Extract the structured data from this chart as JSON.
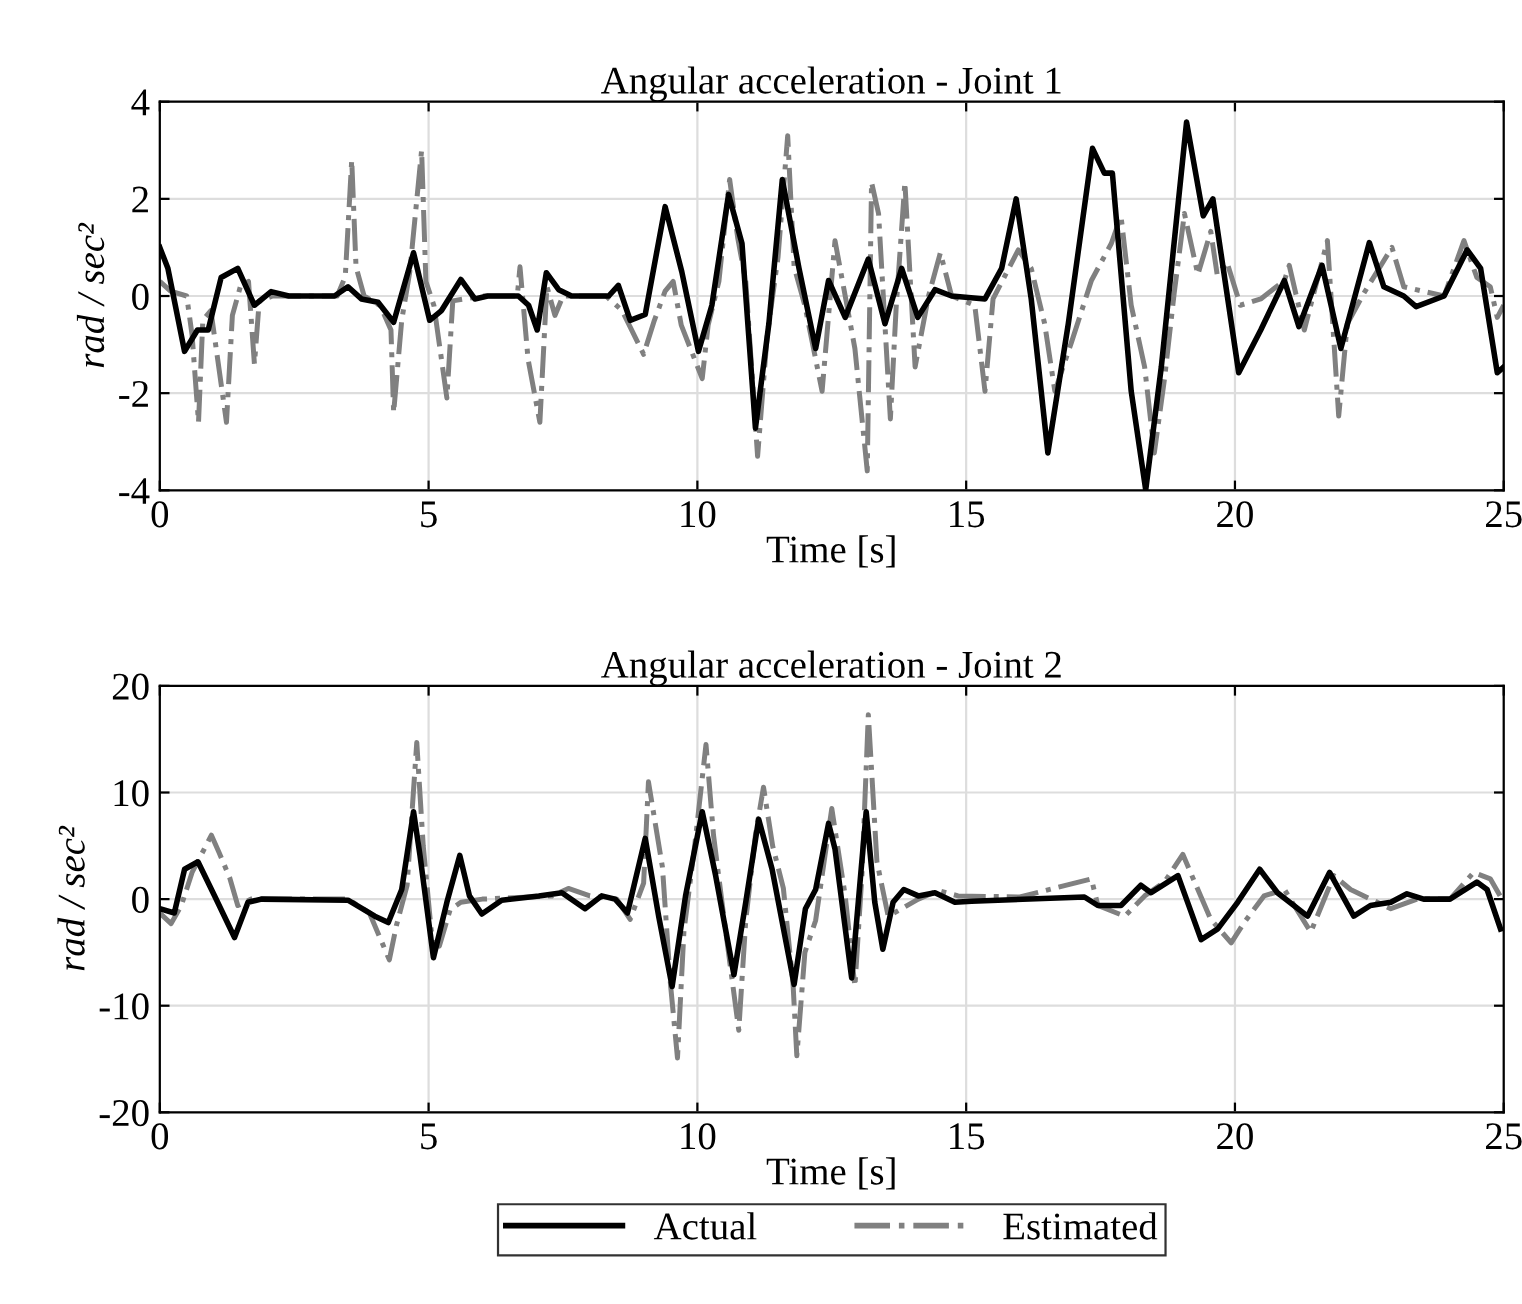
{
  "chart_data": [
    {
      "type": "line",
      "title": "Angular acceleration - Joint 1",
      "xlabel": "Time [s]",
      "ylabel": "rad / sec²",
      "xlim": [
        0,
        25
      ],
      "ylim": [
        -4,
        4
      ],
      "xticks": [
        0,
        5,
        10,
        15,
        20,
        25
      ],
      "yticks": [
        -4,
        -2,
        0,
        2,
        4
      ],
      "grid": true,
      "legend": false,
      "series": [
        {
          "color": "#000000",
          "line_style": "solid",
          "x": [
            0,
            0.15,
            0.46,
            0.7,
            0.9,
            1.14,
            1.45,
            1.76,
            2.07,
            2.4,
            3.25,
            3.5,
            3.75,
            4.06,
            4.35,
            4.72,
            5.02,
            5.24,
            5.6,
            5.86,
            6.1,
            6.67,
            6.86,
            7.02,
            7.19,
            7.42,
            7.66,
            8.35,
            8.53,
            8.75,
            9.03,
            9.4,
            9.71,
            10.02,
            10.27,
            10.58,
            10.83,
            11.08,
            11.33,
            11.58,
            11.89,
            12.2,
            12.44,
            12.75,
            13.18,
            13.49,
            13.8,
            14.1,
            14.42,
            14.73,
            15.35,
            15.66,
            15.93,
            16.21,
            16.52,
            16.9,
            17.35,
            17.57,
            17.72,
            18.07,
            18.34,
            18.63,
            19.1,
            19.41,
            19.59,
            20.07,
            20.48,
            20.92,
            21.19,
            21.62,
            21.97,
            22.5,
            22.77,
            23.14,
            23.37,
            23.89,
            24.32,
            24.57,
            24.88,
            25
          ],
          "values": [
            1.0,
            0.57,
            -1.14,
            -0.7,
            -0.7,
            0.38,
            0.57,
            -0.19,
            0.09,
            0,
            0,
            0.19,
            -0.06,
            -0.13,
            -0.54,
            0.89,
            -0.5,
            -0.3,
            0.34,
            -0.06,
            0,
            0,
            -0.19,
            -0.7,
            0.48,
            0.13,
            0,
            0,
            0.22,
            -0.5,
            -0.38,
            1.84,
            0.5,
            -1.14,
            -0.19,
            2.09,
            1.08,
            -2.72,
            -0.57,
            2.4,
            0.57,
            -1.08,
            0.32,
            -0.44,
            0.76,
            -0.57,
            0.57,
            -0.44,
            0.13,
            0,
            -0.06,
            0.57,
            2.0,
            -0.06,
            -3.23,
            -0.57,
            3.04,
            2.53,
            2.53,
            -1.96,
            -3.99,
            -1.46,
            3.58,
            1.65,
            2.0,
            -1.58,
            -0.7,
            0.32,
            -0.63,
            0.63,
            -1.08,
            1.1,
            0.19,
            0,
            -0.22,
            0,
            0.95,
            0.57,
            -1.58,
            -1.46
          ]
        },
        {
          "color": "#808080",
          "line_style": "dashdot",
          "x": [
            0,
            0.2,
            0.5,
            0.6,
            0.72,
            0.8,
            0.95,
            1.24,
            1.35,
            1.5,
            1.65,
            1.76,
            1.85,
            2.1,
            3.3,
            3.45,
            3.57,
            3.65,
            3.8,
            4.1,
            4.3,
            4.35,
            4.5,
            4.65,
            4.87,
            4.95,
            5.1,
            5.34,
            5.45,
            6.0,
            6.65,
            6.7,
            6.85,
            7.07,
            7.2,
            7.35,
            7.5,
            8.3,
            8.6,
            9.0,
            9.2,
            9.4,
            9.55,
            9.7,
            10.09,
            10.2,
            10.4,
            10.6,
            10.75,
            10.9,
            11.12,
            11.3,
            11.5,
            11.68,
            11.8,
            12.0,
            12.32,
            12.56,
            12.93,
            13.16,
            13.24,
            13.37,
            13.59,
            13.7,
            13.86,
            14.05,
            14.3,
            14.52,
            14.73,
            15.16,
            15.35,
            15.5,
            15.97,
            16.21,
            16.46,
            16.65,
            16.96,
            17.33,
            17.7,
            17.88,
            18.07,
            18.32,
            18.5,
            18.69,
            18.87,
            19.06,
            19.31,
            19.55,
            19.67,
            19.85,
            20.1,
            20.48,
            20.92,
            21.01,
            21.29,
            21.72,
            21.93,
            22.09,
            22.4,
            22.92,
            23.14,
            23.89,
            24.26,
            24.5,
            24.75,
            24.88,
            25
          ],
          "values": [
            0.3,
            0.1,
            0.0,
            -0.8,
            -2.6,
            -0.5,
            -0.3,
            -2.6,
            -0.4,
            0.2,
            0.3,
            -1.4,
            -0.1,
            0,
            0,
            0.4,
            2.8,
            0.6,
            0,
            -0.2,
            -0.7,
            -2.4,
            -0.5,
            0.5,
            3.0,
            0.3,
            -0.2,
            -2.1,
            -0.1,
            0,
            0,
            0.6,
            -1.3,
            -2.6,
            0.2,
            -0.4,
            0,
            0,
            -0.3,
            -1.2,
            -0.5,
            0.1,
            0.3,
            -0.6,
            -1.7,
            -0.6,
            0.3,
            2.4,
            1.2,
            0.3,
            -3.3,
            -0.8,
            0.8,
            3.3,
            0.6,
            -0.2,
            -1.96,
            1.14,
            -1.08,
            -3.6,
            2.34,
            1.7,
            -2.53,
            -0.19,
            2.34,
            -1.46,
            0,
            0.89,
            0,
            -0.19,
            -1.96,
            -0.06,
            0.95,
            0.57,
            -0.57,
            -1.96,
            -0.95,
            0.32,
            1.08,
            1.65,
            -0.19,
            -1.46,
            -3.23,
            -1.7,
            0.06,
            1.7,
            0.44,
            1.33,
            0.44,
            0.7,
            -0.19,
            -0.06,
            0.32,
            0.63,
            -0.7,
            1.14,
            -2.47,
            -0.57,
            0.06,
            1.0,
            0.19,
            0,
            1.14,
            0.38,
            0.19,
            -0.44,
            -0.19
          ]
        }
      ]
    },
    {
      "type": "line",
      "title": "Angular acceleration - Joint 2",
      "xlabel": "Time [s]",
      "ylabel": "rad / sec²",
      "xlim": [
        0,
        25
      ],
      "ylim": [
        -20,
        20
      ],
      "xticks": [
        0,
        5,
        10,
        15,
        20,
        25
      ],
      "yticks": [
        -20,
        -10,
        0,
        10,
        20
      ],
      "grid": true,
      "legend": "bottom",
      "series": [
        {
          "name": "Actual",
          "color": "#000000",
          "line_style": "solid",
          "x": [
            0,
            0.27,
            0.46,
            0.71,
            1.02,
            1.39,
            1.64,
            1.89,
            3.5,
            4.0,
            4.25,
            4.5,
            4.72,
            4.84,
            5.09,
            5.34,
            5.58,
            5.76,
            5.99,
            6.36,
            7.05,
            7.48,
            7.91,
            8.22,
            8.47,
            8.7,
            9.03,
            9.28,
            9.53,
            9.78,
            10.09,
            10.34,
            10.68,
            10.9,
            11.14,
            11.39,
            11.8,
            12.01,
            12.2,
            12.44,
            12.56,
            12.87,
            13.14,
            13.3,
            13.45,
            13.64,
            13.84,
            14.11,
            14.42,
            14.79,
            15.1,
            17.2,
            17.45,
            17.88,
            18.25,
            18.44,
            18.94,
            19.37,
            19.68,
            20.05,
            20.46,
            20.79,
            21.35,
            21.76,
            22.21,
            22.52,
            22.9,
            23.2,
            23.51,
            24.0,
            24.5,
            24.69,
            24.94
          ],
          "values": [
            -0.9,
            -1.3,
            2.8,
            3.5,
            0.3,
            -3.6,
            -0.3,
            0,
            -0.1,
            -1.6,
            -2.2,
            0.9,
            8.2,
            4.1,
            -5.5,
            -0.3,
            4.1,
            0.3,
            -1.4,
            -0.1,
            0.3,
            0.6,
            -0.9,
            0.3,
            0,
            -1.3,
            5.7,
            -1.6,
            -8.2,
            0.3,
            8.2,
            2.2,
            -7.1,
            -0.3,
            7.5,
            2.8,
            -8.0,
            -0.9,
            0.9,
            7.1,
            4.7,
            -7.4,
            8.2,
            -0.3,
            -4.7,
            -0.3,
            0.9,
            0.3,
            0.6,
            -0.3,
            -0.2,
            0.2,
            -0.6,
            -0.6,
            1.3,
            0.6,
            2.2,
            -3.8,
            -2.8,
            -0.3,
            2.8,
            0.6,
            -1.6,
            2.5,
            -1.6,
            -0.6,
            -0.3,
            0.5,
            0,
            0,
            1.6,
            0.9,
            -2.8
          ]
        },
        {
          "name": "Estimated",
          "color": "#808080",
          "line_style": "dashdot",
          "x": [
            0,
            0.21,
            0.4,
            0.6,
            0.96,
            1.1,
            1.3,
            1.45,
            1.7,
            3.5,
            3.9,
            4.27,
            4.4,
            4.6,
            4.78,
            4.9,
            5.05,
            5.2,
            5.4,
            5.6,
            6.0,
            7.3,
            7.6,
            8.0,
            8.5,
            8.75,
            9.0,
            9.09,
            9.35,
            9.5,
            9.63,
            9.75,
            9.95,
            10.16,
            10.3,
            10.5,
            10.77,
            10.9,
            11.08,
            11.23,
            11.4,
            11.6,
            11.78,
            11.85,
            12.0,
            12.2,
            12.5,
            12.75,
            12.93,
            13.06,
            13.18,
            13.34,
            13.55,
            13.8,
            14.11,
            14.48,
            14.85,
            16.0,
            17.33,
            17.45,
            17.95,
            18.32,
            18.69,
            19.03,
            19.25,
            19.55,
            19.93,
            20.17,
            20.54,
            20.92,
            21.41,
            21.84,
            22.15,
            22.9,
            23.39,
            24.0,
            24.44,
            24.75,
            25
          ],
          "values": [
            -1.3,
            -2.3,
            -0.6,
            2.5,
            6.0,
            4.4,
            2.0,
            -0.6,
            0,
            0,
            -1.3,
            -5.7,
            -2.5,
            1.3,
            14.7,
            5.0,
            -3.0,
            -4.4,
            -1.0,
            -0.3,
            0,
            0.3,
            1.0,
            0.3,
            0,
            -1.9,
            1.5,
            11.0,
            3.0,
            -8.0,
            -14.9,
            -3.0,
            5.0,
            14.5,
            6.0,
            -2.0,
            -12.3,
            -2.0,
            6.0,
            10.5,
            5.0,
            1.0,
            -8.0,
            -14.7,
            -5.0,
            -2.0,
            8.5,
            0.3,
            -8.2,
            2.2,
            17.3,
            3.5,
            -1.6,
            -0.9,
            0,
            0.8,
            0.3,
            0.2,
            1.9,
            -0.6,
            -1.6,
            0.3,
            1.6,
            4.2,
            1.6,
            -1.9,
            -4.1,
            -2.2,
            0.3,
            0.9,
            -3.1,
            2.2,
            0.9,
            -0.9,
            0,
            0,
            2.5,
            1.9,
            -0.3
          ]
        }
      ]
    }
  ]
}
